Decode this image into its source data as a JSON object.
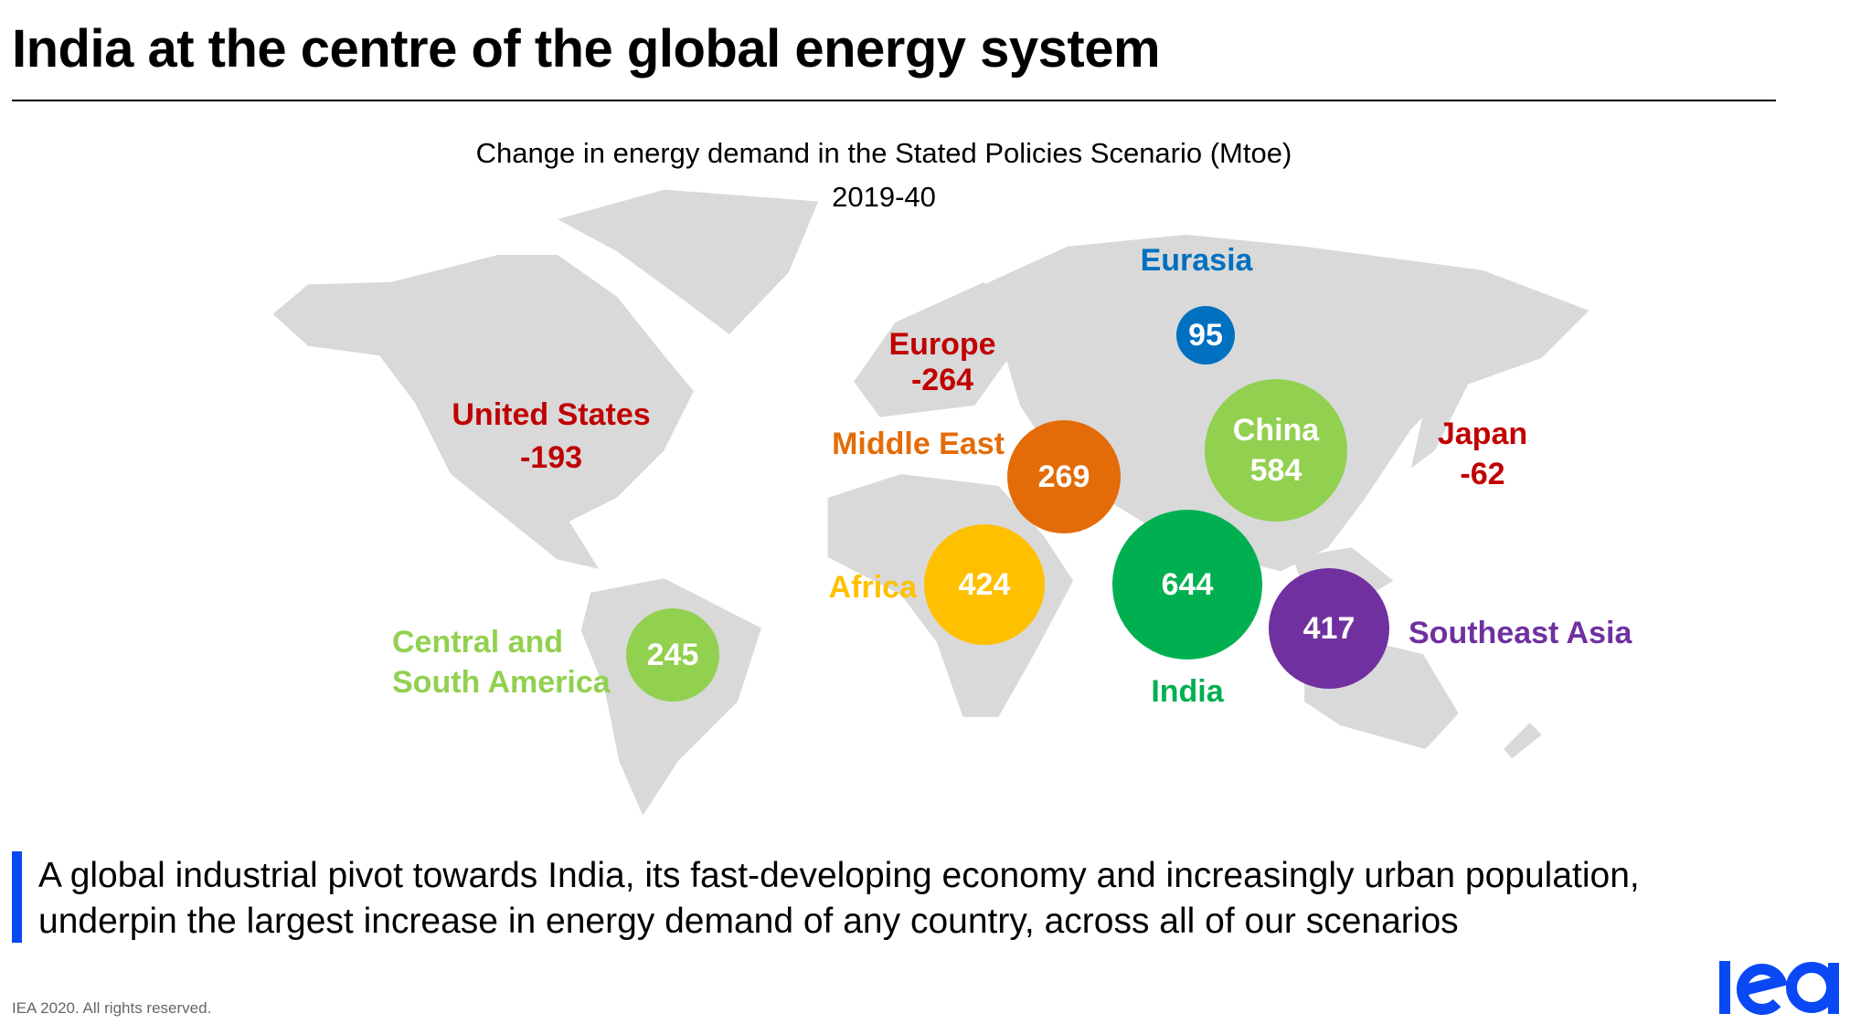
{
  "header": {
    "title": "India at the centre of the global energy system"
  },
  "chart": {
    "title_line1": "Change in energy demand in the Stated Policies Scenario (Mtoe)",
    "title_line2": "2019-40"
  },
  "regions": {
    "eurasia": {
      "name": "Eurasia",
      "value": "95",
      "color": "#0070C0"
    },
    "europe": {
      "name": "Europe",
      "value": "-264",
      "color": "#C00000"
    },
    "united_states": {
      "name": "United States",
      "value": "-193",
      "color": "#C00000"
    },
    "japan": {
      "name": "Japan",
      "value": "-62",
      "color": "#C00000"
    },
    "middle_east": {
      "name": "Middle East",
      "value": "269",
      "color": "#E36C09"
    },
    "china": {
      "name": "China",
      "value": "584",
      "color": "#92D050"
    },
    "africa": {
      "name": "Africa",
      "value": "424",
      "color": "#FFC000"
    },
    "india": {
      "name": "India",
      "value": "644",
      "color": "#00B050"
    },
    "southeast_asia": {
      "name": "Southeast Asia",
      "value": "417",
      "color": "#7030A0"
    },
    "central_south_america": {
      "name_line1": "Central and",
      "name_line2": "South America",
      "value": "245",
      "color": "#92D050"
    }
  },
  "message": {
    "line1": "A global industrial pivot towards India, its fast-developing economy and increasingly urban population,",
    "line2": "underpin the largest increase in energy demand of any country, across all of our scenarios"
  },
  "footer": {
    "copyright": "IEA 2020. All rights reserved.",
    "logo_text": "iea",
    "logo_color": "#0A48F5"
  }
}
